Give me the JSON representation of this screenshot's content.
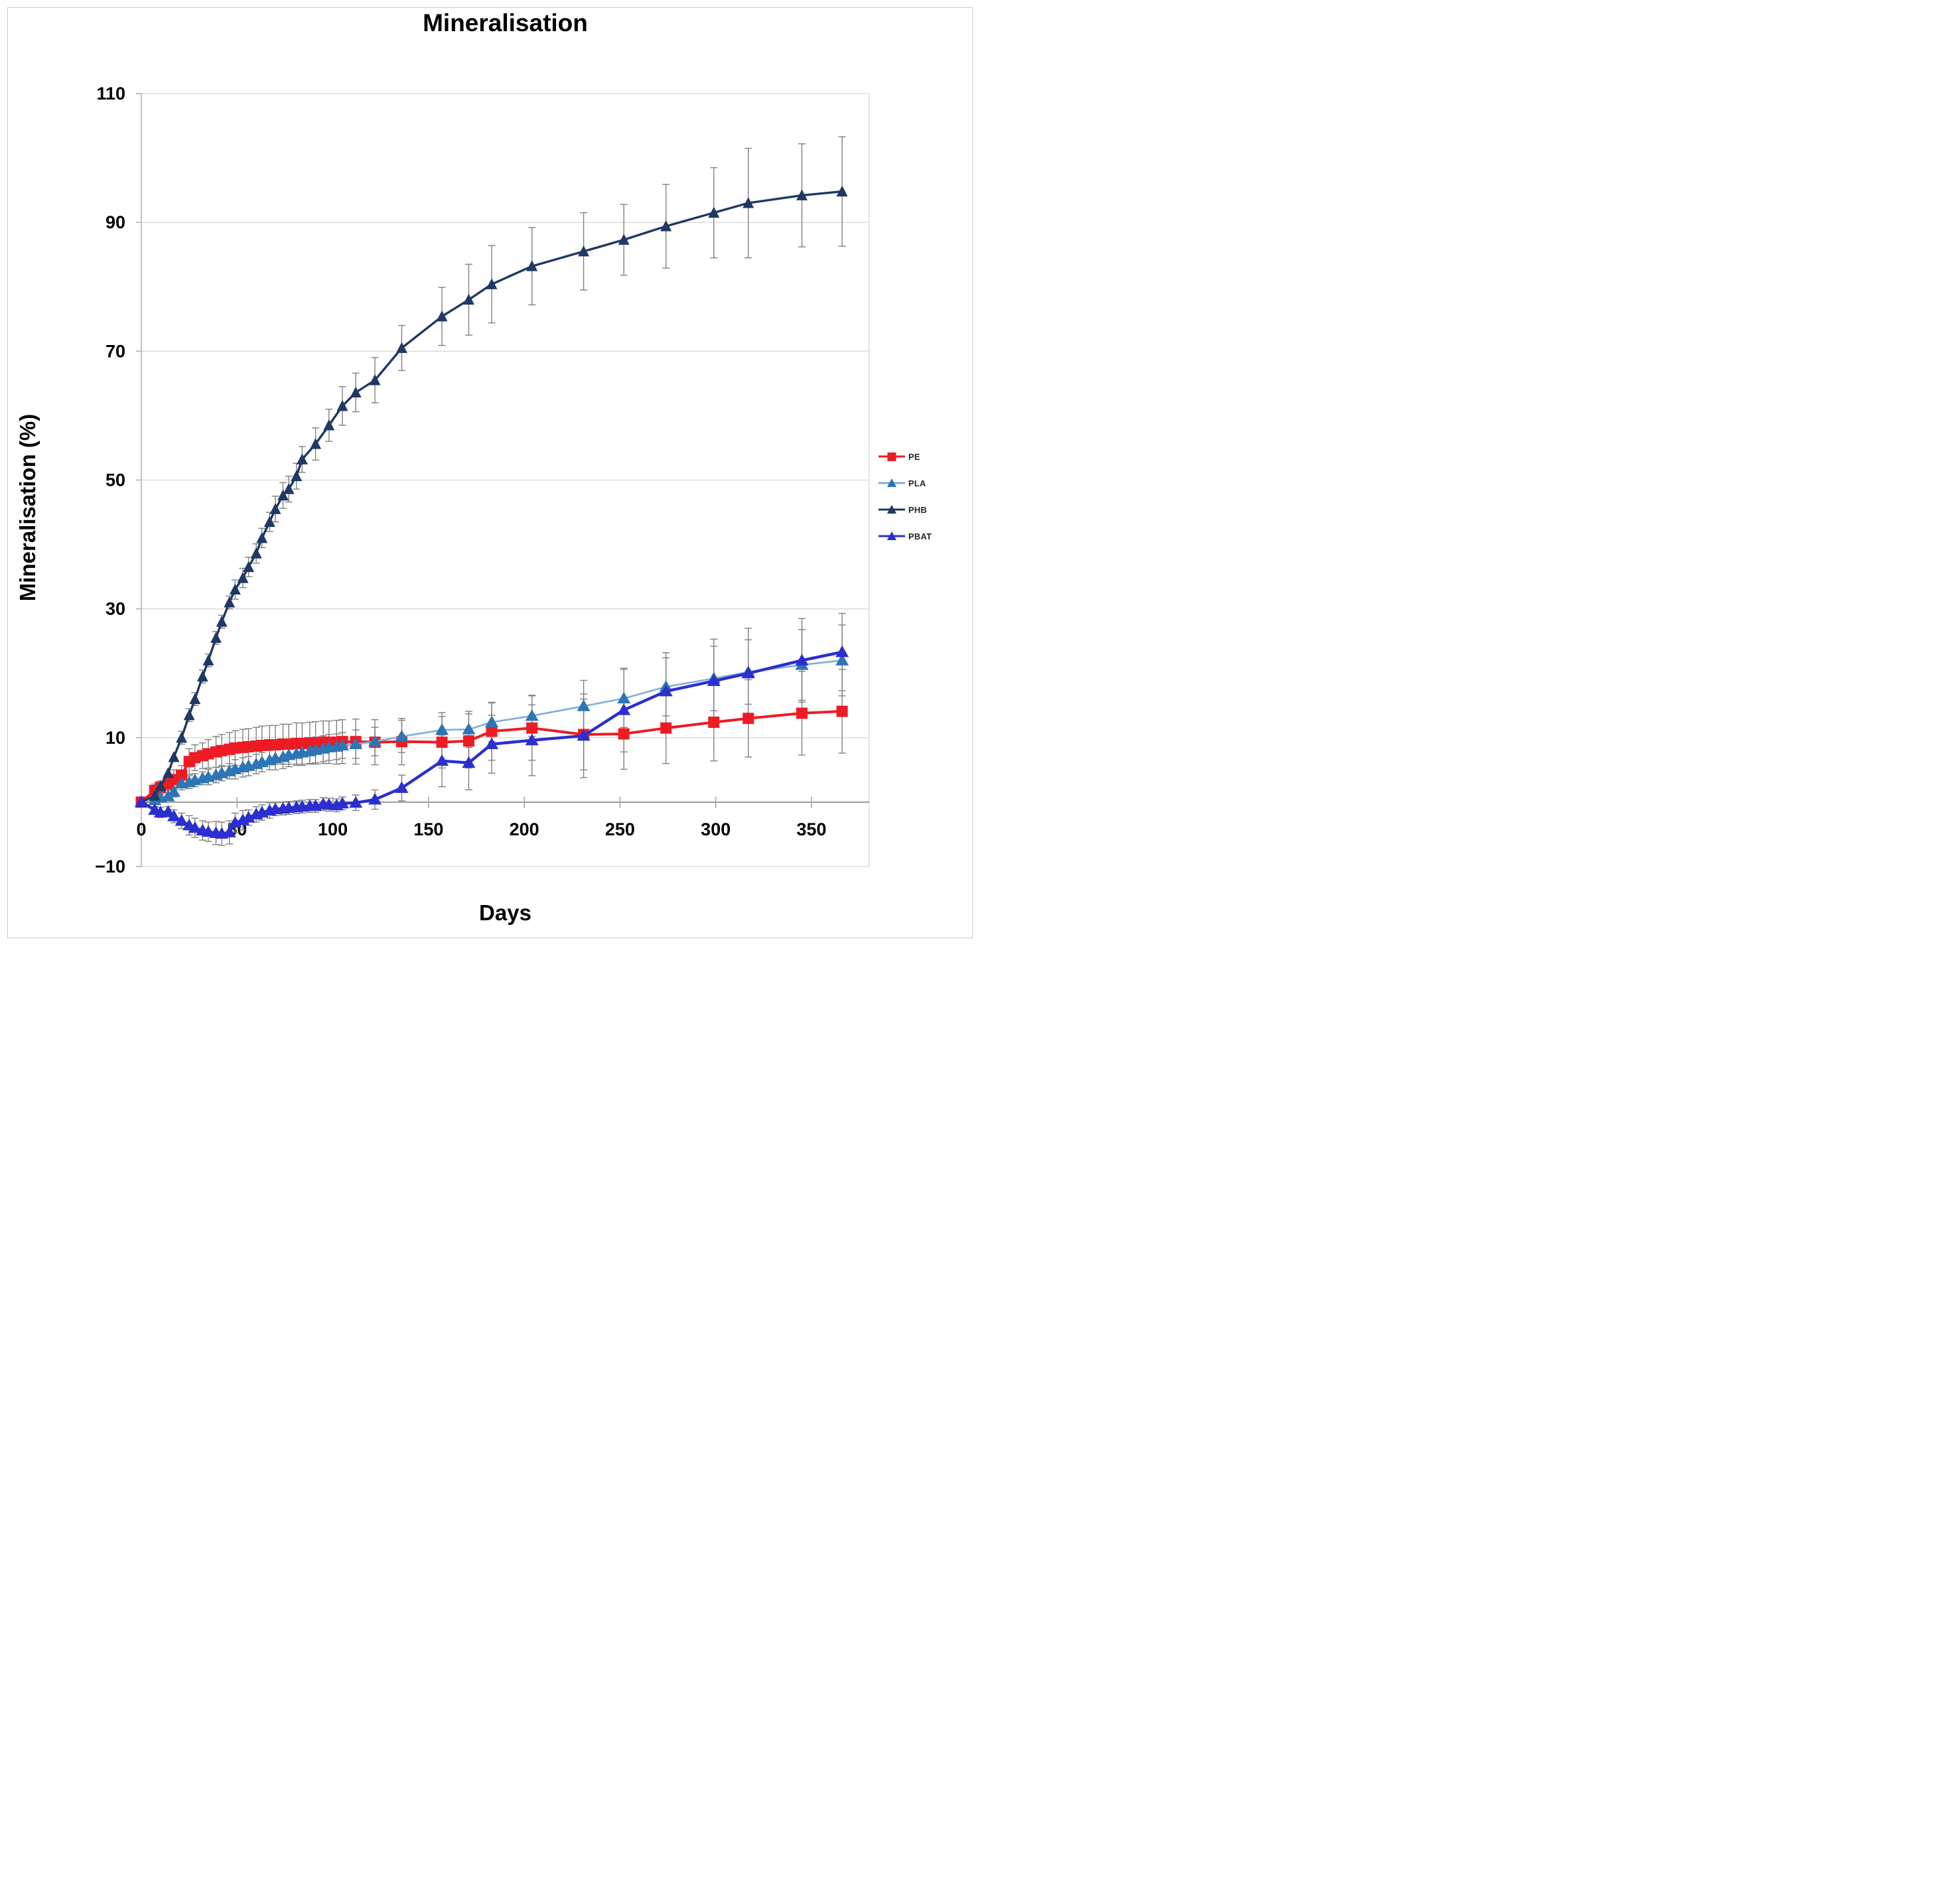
{
  "chart_data": {
    "type": "line",
    "title": "Mineralisation",
    "xlabel": "Days",
    "ylabel": "Mineralisation (%)",
    "x_ticks": [
      0,
      50,
      100,
      150,
      200,
      250,
      300,
      350
    ],
    "y_ticks": [
      -10,
      10,
      30,
      50,
      70,
      90,
      110
    ],
    "xlim": [
      0,
      380
    ],
    "ylim": [
      -10,
      110
    ],
    "grid": "horizontal-only",
    "legend_position": "right",
    "error_bar_color": "#808080",
    "axis_color": "#a6a6a6",
    "gridline_color": "#d9d9d9",
    "series": [
      {
        "name": "PE",
        "marker": "square",
        "color": "#ED1B24",
        "line_color": "#ED1B24",
        "points": [
          [
            0,
            0,
            0
          ],
          [
            7,
            1.8,
            1
          ],
          [
            10,
            2.3,
            1
          ],
          [
            14,
            2.8,
            1
          ],
          [
            17,
            3.5,
            1.5
          ],
          [
            21,
            4.2,
            1.5
          ],
          [
            25,
            6.3,
            2
          ],
          [
            28,
            6.9,
            2
          ],
          [
            32,
            7.2,
            2
          ],
          [
            35,
            7.5,
            2.2
          ],
          [
            39,
            7.8,
            2.4
          ],
          [
            42,
            8,
            2.5
          ],
          [
            46,
            8.2,
            2.6
          ],
          [
            49,
            8.4,
            2.7
          ],
          [
            53,
            8.5,
            2.8
          ],
          [
            56,
            8.6,
            2.8
          ],
          [
            60,
            8.7,
            2.9
          ],
          [
            63,
            8.8,
            3
          ],
          [
            67,
            8.9,
            3
          ],
          [
            70,
            8.9,
            3
          ],
          [
            74,
            9,
            3.1
          ],
          [
            77,
            9,
            3.1
          ],
          [
            81,
            9.1,
            3.2
          ],
          [
            84,
            9.1,
            3.2
          ],
          [
            88,
            9.2,
            3.2
          ],
          [
            91,
            9.2,
            3.3
          ],
          [
            95,
            9.3,
            3.3
          ],
          [
            98,
            9.3,
            3.3
          ],
          [
            102,
            9.3,
            3.4
          ],
          [
            105,
            9.4,
            3.4
          ],
          [
            112,
            9.4,
            3.5
          ],
          [
            122,
            9.3,
            3.5
          ],
          [
            136,
            9.4,
            3.6
          ],
          [
            157,
            9.3,
            4
          ],
          [
            171,
            9.5,
            4.2
          ],
          [
            183,
            11,
            4.5
          ],
          [
            204,
            11.5,
            5
          ],
          [
            231,
            10.5,
            5.5
          ],
          [
            252,
            10.6,
            5.5
          ],
          [
            274,
            11.5,
            5.5
          ],
          [
            299,
            12.4,
            6
          ],
          [
            317,
            13,
            6
          ],
          [
            345,
            13.8,
            6.5
          ],
          [
            366,
            14.1,
            6.5
          ]
        ]
      },
      {
        "name": "PLA",
        "marker": "triangle",
        "color": "#2E75B6",
        "line_color": "#7FAEDC",
        "points": [
          [
            0,
            0,
            0
          ],
          [
            7,
            0.3,
            0.5
          ],
          [
            10,
            0.7,
            0.5
          ],
          [
            14,
            0.9,
            0.5
          ],
          [
            17,
            1.6,
            0.8
          ],
          [
            21,
            2.9,
            1
          ],
          [
            25,
            3.1,
            1
          ],
          [
            28,
            3.4,
            1
          ],
          [
            32,
            3.7,
            1
          ],
          [
            35,
            3.9,
            1.2
          ],
          [
            39,
            4.2,
            1.2
          ],
          [
            42,
            4.5,
            1.2
          ],
          [
            46,
            4.8,
            1.2
          ],
          [
            49,
            5.1,
            1.5
          ],
          [
            53,
            5.4,
            1.5
          ],
          [
            56,
            5.6,
            1.5
          ],
          [
            60,
            5.9,
            1.5
          ],
          [
            63,
            6.2,
            1.5
          ],
          [
            67,
            6.5,
            1.5
          ],
          [
            70,
            6.8,
            1.8
          ],
          [
            74,
            7,
            1.8
          ],
          [
            77,
            7.3,
            1.8
          ],
          [
            81,
            7.5,
            1.8
          ],
          [
            84,
            7.7,
            2
          ],
          [
            88,
            7.9,
            2
          ],
          [
            91,
            8.1,
            2
          ],
          [
            95,
            8.3,
            2
          ],
          [
            98,
            8.5,
            2
          ],
          [
            102,
            8.6,
            2
          ],
          [
            105,
            8.8,
            2
          ],
          [
            112,
            9,
            2.2
          ],
          [
            122,
            9.4,
            2.2
          ],
          [
            136,
            10.2,
            2.5
          ],
          [
            157,
            11.2,
            2.7
          ],
          [
            171,
            11.3,
            2.8
          ],
          [
            183,
            12.4,
            3
          ],
          [
            204,
            13.4,
            3.2
          ],
          [
            231,
            14.9,
            4
          ],
          [
            252,
            16.1,
            4.5
          ],
          [
            274,
            17.9,
            4.5
          ],
          [
            299,
            19.2,
            5
          ],
          [
            317,
            20.2,
            5
          ],
          [
            345,
            21.3,
            5.5
          ],
          [
            366,
            22,
            5.5
          ]
        ]
      },
      {
        "name": "PHB",
        "marker": "triangle",
        "color": "#1F3864",
        "line_color": "#1F3864",
        "points": [
          [
            0,
            0,
            0
          ],
          [
            7,
            1,
            0
          ],
          [
            10,
            2.5,
            0
          ],
          [
            14,
            4.5,
            0
          ],
          [
            17,
            7,
            0
          ],
          [
            21,
            10,
            1
          ],
          [
            25,
            13.5,
            1
          ],
          [
            28,
            16,
            1
          ],
          [
            32,
            19.5,
            1
          ],
          [
            35,
            22,
            1
          ],
          [
            39,
            25.5,
            1
          ],
          [
            42,
            28,
            1
          ],
          [
            46,
            31,
            1
          ],
          [
            49,
            33,
            1.5
          ],
          [
            53,
            34.8,
            1.5
          ],
          [
            56,
            36.5,
            1.5
          ],
          [
            60,
            38.6,
            1.5
          ],
          [
            63,
            41,
            1.5
          ],
          [
            67,
            43.5,
            1.5
          ],
          [
            70,
            45.5,
            2
          ],
          [
            74,
            47.6,
            2
          ],
          [
            77,
            48.6,
            2
          ],
          [
            81,
            50.6,
            2
          ],
          [
            84,
            53.2,
            2
          ],
          [
            91,
            55.6,
            2.5
          ],
          [
            98,
            58.5,
            2.5
          ],
          [
            105,
            61.5,
            3
          ],
          [
            112,
            63.6,
            3
          ],
          [
            122,
            65.5,
            3.5
          ],
          [
            136,
            70.5,
            3.5
          ],
          [
            157,
            75.4,
            4.5
          ],
          [
            171,
            78,
            5.5
          ],
          [
            183,
            80.4,
            6
          ],
          [
            204,
            83.2,
            6
          ],
          [
            231,
            85.5,
            6
          ],
          [
            252,
            87.3,
            5.5
          ],
          [
            274,
            89.4,
            6.5
          ],
          [
            299,
            91.5,
            7
          ],
          [
            317,
            93,
            8.5
          ],
          [
            345,
            94.2,
            8
          ],
          [
            366,
            94.8,
            8.5
          ]
        ]
      },
      {
        "name": "PBAT",
        "marker": "triangle",
        "color": "#2B2FD0",
        "line_color": "#2B2FD0",
        "points": [
          [
            0,
            0,
            0
          ],
          [
            7,
            -1.2,
            0.5
          ],
          [
            10,
            -1.6,
            0.8
          ],
          [
            14,
            -1.5,
            0.8
          ],
          [
            17,
            -2.2,
            1
          ],
          [
            21,
            -2.9,
            1.2
          ],
          [
            25,
            -3.6,
            1.5
          ],
          [
            28,
            -4,
            1.5
          ],
          [
            32,
            -4.4,
            1.5
          ],
          [
            35,
            -4.6,
            1.5
          ],
          [
            39,
            -4.8,
            1.8
          ],
          [
            42,
            -4.9,
            1.8
          ],
          [
            46,
            -4.7,
            1.8
          ],
          [
            49,
            -3.2,
            1.5
          ],
          [
            53,
            -2.8,
            1.5
          ],
          [
            56,
            -2.4,
            1.2
          ],
          [
            60,
            -1.9,
            1.2
          ],
          [
            63,
            -1.6,
            1.2
          ],
          [
            67,
            -1.3,
            1.2
          ],
          [
            70,
            -1.1,
            1
          ],
          [
            74,
            -1,
            1
          ],
          [
            77,
            -0.9,
            1
          ],
          [
            81,
            -0.8,
            1
          ],
          [
            84,
            -0.7,
            1
          ],
          [
            88,
            -0.6,
            1
          ],
          [
            91,
            -0.6,
            1
          ],
          [
            95,
            -0.3,
            1
          ],
          [
            98,
            -0.4,
            1
          ],
          [
            102,
            -0.5,
            1
          ],
          [
            105,
            -0.2,
            1
          ],
          [
            112,
            -0.1,
            1.2
          ],
          [
            122,
            0.4,
            1.5
          ],
          [
            136,
            2.2,
            2
          ],
          [
            157,
            6.4,
            4
          ],
          [
            171,
            6.1,
            4.2
          ],
          [
            183,
            9,
            4.5
          ],
          [
            204,
            9.6,
            5.5
          ],
          [
            231,
            10.3,
            6.5
          ],
          [
            252,
            14.3,
            6.5
          ],
          [
            274,
            17.2,
            6
          ],
          [
            299,
            18.8,
            6.5
          ],
          [
            317,
            20,
            7
          ],
          [
            345,
            22,
            6.5
          ],
          [
            366,
            23.3,
            6
          ]
        ]
      }
    ]
  }
}
